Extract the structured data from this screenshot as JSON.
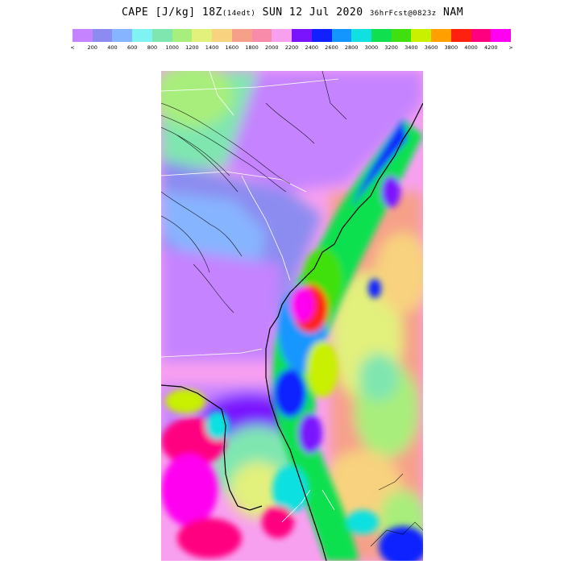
{
  "title": {
    "main": "CAPE [J/kg] 18Z",
    "valid_local": "(14edt)",
    "date": "SUN 12 Jul 2020",
    "forecast": "36hrFcst@0823z",
    "model": "NAM"
  },
  "colorbar": {
    "colors": [
      "#c583ff",
      "#8c8cf0",
      "#87b4ff",
      "#7ff2f2",
      "#7fe6b0",
      "#a8ee7c",
      "#e2f07c",
      "#f8d27e",
      "#f6a08a",
      "#f88aaa",
      "#f8a0f0",
      "#7a14ff",
      "#1020ff",
      "#1496ff",
      "#10e0e0",
      "#10e050",
      "#40e010",
      "#c8f000",
      "#ffa000",
      "#ff2010",
      "#ff0080",
      "#ff00f0"
    ],
    "labels": [
      "<",
      "200",
      "400",
      "600",
      "800",
      "1000",
      "1200",
      "1400",
      "1600",
      "1800",
      "2000",
      "2200",
      "2400",
      "2600",
      "2800",
      "3000",
      "3200",
      "3400",
      "3600",
      "3800",
      "4000",
      "4200",
      ">"
    ]
  },
  "map": {
    "region": "Southeastern US / Florida",
    "field": "CAPE"
  }
}
